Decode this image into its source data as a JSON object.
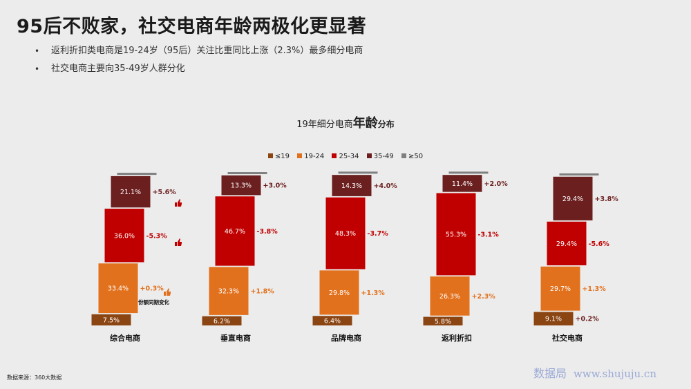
{
  "title": "95后不败家，社交电商年龄两极化更显著",
  "bullets": [
    "返利折扣类电商是19-24岁（95后）关注比重同比上涨（2.3%）最多细分电商",
    "社交电商主要向35-49岁人群分化"
  ],
  "chart_title": {
    "part1": "19年细分电商",
    "part2": "年龄",
    "part3": "分布"
  },
  "legend": [
    {
      "label": "≤19",
      "color": "#8b4513"
    },
    {
      "label": "19-24",
      "color": "#e2711d"
    },
    {
      "label": "25-34",
      "color": "#c00000"
    },
    {
      "label": "35-49",
      "color": "#6b1f1f"
    },
    {
      "label": "≥50",
      "color": "#7f7f7f"
    }
  ],
  "annotation_label": "份额同期变化",
  "source": "数据来源：360大数据",
  "watermark": {
    "cn": "数据局",
    "url": "www.shujuju.cn"
  },
  "colors": {
    "up": "#e2711d",
    "down": "#c00000",
    "neutral_up": "#6b1f1f"
  },
  "chart_data": {
    "type": "bar",
    "subtype": "floating-stacked",
    "title": "19年细分电商年龄分布",
    "categories": [
      "综合电商",
      "垂直电商",
      "品牌电商",
      "返利折扣",
      "社交电商"
    ],
    "series": [
      {
        "name": "≤19",
        "values": [
          7.5,
          6.2,
          6.4,
          5.8,
          9.1
        ],
        "labels": [
          "7.5%",
          "6.2%",
          "6.4%",
          "5.8%",
          "9.1%"
        ],
        "changes": [
          null,
          null,
          null,
          null,
          null
        ]
      },
      {
        "name": "19-24",
        "values": [
          33.4,
          32.3,
          29.8,
          26.3,
          29.7
        ],
        "labels": [
          "33.4%",
          "32.3%",
          "29.8%",
          "26.3%",
          "29.7%"
        ],
        "changes": [
          "+0.3%",
          "+1.8%",
          "+1.3%",
          "+2.3%",
          "+1.3%"
        ]
      },
      {
        "name": "25-34",
        "values": [
          36.0,
          46.7,
          48.3,
          55.3,
          29.4
        ],
        "labels": [
          "36.0%",
          "46.7%",
          "48.3%",
          "55.3%",
          "29.4%"
        ],
        "changes": [
          "-5.3%",
          "-3.8%",
          "-3.7%",
          "-3.1%",
          "-5.6%"
        ]
      },
      {
        "name": "35-49",
        "values": [
          21.1,
          13.3,
          14.3,
          11.4,
          29.4
        ],
        "labels": [
          "21.1%",
          "13.3%",
          "14.3%",
          "11.4%",
          "29.4%"
        ],
        "changes": [
          "+5.6%",
          "+3.0%",
          "+4.0%",
          "+2.0%",
          "+3.8%"
        ]
      },
      {
        "name": "≥50",
        "values": [
          2.0,
          2.0,
          2.0,
          2.0,
          2.0
        ],
        "labels": [
          "",
          "",
          "",
          "",
          ""
        ],
        "changes": [
          null,
          null,
          null,
          null,
          null
        ]
      }
    ],
    "extra_changes": {
      "category": "社交电商",
      "series": "≤19",
      "change": "+0.2%"
    },
    "icons": [
      "thumb-up-icon",
      "thumb-down-icon",
      "thumb-up-icon"
    ]
  }
}
